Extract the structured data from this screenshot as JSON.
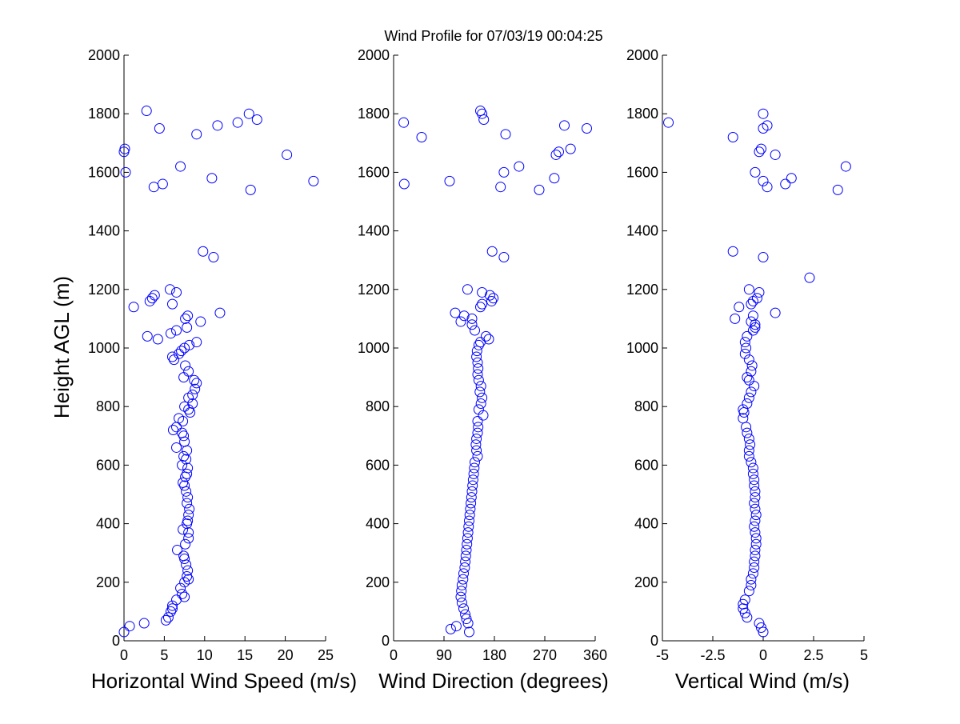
{
  "chart_data": {
    "title": "Wind Profile for  07/03/19 00:04:25",
    "ylabel": "Height AGL (m)",
    "ylim": [
      0,
      2000
    ],
    "yticks": [
      "0",
      "200",
      "400",
      "600",
      "800",
      "1000",
      "1200",
      "1400",
      "1600",
      "1800",
      "2000"
    ],
    "point_color": "#0000ff",
    "panels": [
      {
        "type": "scatter",
        "xlabel": "Horizontal Wind Speed (m/s)",
        "xlim": [
          0,
          25
        ],
        "xticks": [
          {
            "v": 0,
            "label": "0"
          },
          {
            "v": 5,
            "label": "5"
          },
          {
            "v": 10,
            "label": "10"
          },
          {
            "v": 15,
            "label": "15"
          },
          {
            "v": 20,
            "label": "20"
          },
          {
            "v": 25,
            "label": "25"
          }
        ],
        "points": [
          [
            0.0,
            30
          ],
          [
            0.7,
            50
          ],
          [
            2.5,
            60
          ],
          [
            5.2,
            70
          ],
          [
            5.5,
            80
          ],
          [
            5.8,
            100
          ],
          [
            6.0,
            110
          ],
          [
            6.0,
            120
          ],
          [
            6.5,
            140
          ],
          [
            7.5,
            150
          ],
          [
            7.2,
            160
          ],
          [
            7.0,
            180
          ],
          [
            7.5,
            200
          ],
          [
            8.0,
            210
          ],
          [
            7.8,
            220
          ],
          [
            7.9,
            240
          ],
          [
            7.7,
            260
          ],
          [
            7.5,
            280
          ],
          [
            7.4,
            290
          ],
          [
            6.6,
            310
          ],
          [
            7.6,
            330
          ],
          [
            8.0,
            350
          ],
          [
            8.0,
            370
          ],
          [
            7.3,
            380
          ],
          [
            7.8,
            400
          ],
          [
            7.9,
            410
          ],
          [
            8.0,
            430
          ],
          [
            8.1,
            450
          ],
          [
            7.8,
            470
          ],
          [
            7.9,
            490
          ],
          [
            7.7,
            510
          ],
          [
            7.5,
            530
          ],
          [
            7.3,
            540
          ],
          [
            7.6,
            560
          ],
          [
            7.8,
            570
          ],
          [
            7.9,
            590
          ],
          [
            7.2,
            600
          ],
          [
            7.7,
            620
          ],
          [
            7.4,
            630
          ],
          [
            7.8,
            650
          ],
          [
            6.5,
            660
          ],
          [
            7.5,
            680
          ],
          [
            7.4,
            700
          ],
          [
            7.2,
            710
          ],
          [
            6.1,
            720
          ],
          [
            6.5,
            730
          ],
          [
            7.3,
            750
          ],
          [
            6.8,
            760
          ],
          [
            8.2,
            780
          ],
          [
            8.0,
            790
          ],
          [
            7.5,
            800
          ],
          [
            8.5,
            810
          ],
          [
            8.0,
            830
          ],
          [
            8.5,
            840
          ],
          [
            8.8,
            860
          ],
          [
            9.0,
            880
          ],
          [
            8.7,
            890
          ],
          [
            7.4,
            900
          ],
          [
            8.0,
            920
          ],
          [
            7.6,
            940
          ],
          [
            6.2,
            960
          ],
          [
            6.0,
            970
          ],
          [
            6.8,
            980
          ],
          [
            7.1,
            990
          ],
          [
            7.5,
            1000
          ],
          [
            8.1,
            1010
          ],
          [
            9.0,
            1020
          ],
          [
            2.9,
            1040
          ],
          [
            4.2,
            1030
          ],
          [
            5.8,
            1050
          ],
          [
            6.5,
            1060
          ],
          [
            7.8,
            1070
          ],
          [
            9.5,
            1090
          ],
          [
            7.6,
            1100
          ],
          [
            7.9,
            1110
          ],
          [
            11.9,
            1120
          ],
          [
            1.2,
            1140
          ],
          [
            6.0,
            1150
          ],
          [
            3.2,
            1160
          ],
          [
            3.5,
            1170
          ],
          [
            3.8,
            1180
          ],
          [
            6.5,
            1190
          ],
          [
            5.7,
            1200
          ],
          [
            11.1,
            1310
          ],
          [
            9.8,
            1330
          ],
          [
            3.7,
            1550
          ],
          [
            4.8,
            1560
          ],
          [
            15.7,
            1540
          ],
          [
            23.5,
            1570
          ],
          [
            10.9,
            1580
          ],
          [
            0.2,
            1600
          ],
          [
            7.0,
            1620
          ],
          [
            20.2,
            1660
          ],
          [
            0.0,
            1670
          ],
          [
            0.1,
            1680
          ],
          [
            4.4,
            1750
          ],
          [
            9.0,
            1730
          ],
          [
            11.6,
            1760
          ],
          [
            14.1,
            1770
          ],
          [
            16.5,
            1780
          ],
          [
            15.5,
            1800
          ],
          [
            2.8,
            1810
          ]
        ]
      },
      {
        "type": "scatter",
        "xlabel": "Wind Direction (degrees)",
        "xlim": [
          0,
          360
        ],
        "xticks": [
          {
            "v": 0,
            "label": "0"
          },
          {
            "v": 90,
            "label": "90"
          },
          {
            "v": 180,
            "label": "180"
          },
          {
            "v": 270,
            "label": "270"
          },
          {
            "v": 360,
            "label": "360"
          }
        ],
        "points": [
          [
            135,
            30
          ],
          [
            102,
            40
          ],
          [
            112,
            50
          ],
          [
            133,
            60
          ],
          [
            130,
            75
          ],
          [
            128,
            90
          ],
          [
            125,
            110
          ],
          [
            122,
            130
          ],
          [
            120,
            150
          ],
          [
            121,
            170
          ],
          [
            122,
            190
          ],
          [
            124,
            210
          ],
          [
            125,
            230
          ],
          [
            127,
            250
          ],
          [
            128,
            270
          ],
          [
            129,
            290
          ],
          [
            130,
            310
          ],
          [
            131,
            330
          ],
          [
            132,
            350
          ],
          [
            133,
            370
          ],
          [
            134,
            390
          ],
          [
            135,
            410
          ],
          [
            136,
            430
          ],
          [
            137,
            450
          ],
          [
            138,
            470
          ],
          [
            139,
            490
          ],
          [
            140,
            510
          ],
          [
            141,
            530
          ],
          [
            142,
            550
          ],
          [
            143,
            570
          ],
          [
            144,
            590
          ],
          [
            145,
            610
          ],
          [
            150,
            630
          ],
          [
            148,
            650
          ],
          [
            147,
            670
          ],
          [
            148,
            690
          ],
          [
            150,
            710
          ],
          [
            151,
            730
          ],
          [
            150,
            750
          ],
          [
            160,
            770
          ],
          [
            152,
            790
          ],
          [
            156,
            810
          ],
          [
            158,
            830
          ],
          [
            154,
            850
          ],
          [
            156,
            870
          ],
          [
            152,
            890
          ],
          [
            150,
            910
          ],
          [
            151,
            930
          ],
          [
            150,
            950
          ],
          [
            148,
            970
          ],
          [
            149,
            990
          ],
          [
            152,
            1010
          ],
          [
            155,
            1020
          ],
          [
            170,
            1030
          ],
          [
            165,
            1040
          ],
          [
            145,
            1060
          ],
          [
            140,
            1080
          ],
          [
            120,
            1090
          ],
          [
            140,
            1100
          ],
          [
            126,
            1110
          ],
          [
            110,
            1120
          ],
          [
            155,
            1140
          ],
          [
            158,
            1150
          ],
          [
            175,
            1160
          ],
          [
            178,
            1170
          ],
          [
            172,
            1180
          ],
          [
            158,
            1190
          ],
          [
            132,
            1200
          ],
          [
            197,
            1310
          ],
          [
            176,
            1330
          ],
          [
            19,
            1560
          ],
          [
            100,
            1570
          ],
          [
            287,
            1580
          ],
          [
            197,
            1600
          ],
          [
            224,
            1620
          ],
          [
            290,
            1660
          ],
          [
            295,
            1670
          ],
          [
            316,
            1680
          ],
          [
            260,
            1540
          ],
          [
            191,
            1550
          ],
          [
            50,
            1720
          ],
          [
            200,
            1730
          ],
          [
            345,
            1750
          ],
          [
            305,
            1760
          ],
          [
            18,
            1770
          ],
          [
            161,
            1780
          ],
          [
            158,
            1800
          ],
          [
            155,
            1810
          ]
        ]
      },
      {
        "type": "scatter",
        "xlabel": "Vertical Wind (m/s)",
        "xlim": [
          -5,
          5
        ],
        "xticks": [
          {
            "v": -5,
            "label": "-5"
          },
          {
            "v": -2.5,
            "label": "-2.5"
          },
          {
            "v": 0,
            "label": "0"
          },
          {
            "v": 2.5,
            "label": "2.5"
          },
          {
            "v": 5,
            "label": "5"
          }
        ],
        "points": [
          [
            0.0,
            30
          ],
          [
            -0.1,
            45
          ],
          [
            -0.2,
            60
          ],
          [
            -0.8,
            80
          ],
          [
            -0.9,
            95
          ],
          [
            -1.0,
            110
          ],
          [
            -1.0,
            125
          ],
          [
            -0.9,
            140
          ],
          [
            -0.7,
            170
          ],
          [
            -0.6,
            190
          ],
          [
            -0.6,
            210
          ],
          [
            -0.5,
            230
          ],
          [
            -0.45,
            250
          ],
          [
            -0.45,
            270
          ],
          [
            -0.4,
            290
          ],
          [
            -0.4,
            310
          ],
          [
            -0.35,
            330
          ],
          [
            -0.35,
            350
          ],
          [
            -0.4,
            370
          ],
          [
            -0.45,
            390
          ],
          [
            -0.4,
            410
          ],
          [
            -0.35,
            430
          ],
          [
            -0.4,
            450
          ],
          [
            -0.45,
            470
          ],
          [
            -0.4,
            490
          ],
          [
            -0.4,
            510
          ],
          [
            -0.45,
            530
          ],
          [
            -0.45,
            550
          ],
          [
            -0.5,
            570
          ],
          [
            -0.5,
            590
          ],
          [
            -0.6,
            610
          ],
          [
            -0.7,
            630
          ],
          [
            -0.7,
            650
          ],
          [
            -0.65,
            670
          ],
          [
            -0.7,
            690
          ],
          [
            -0.8,
            710
          ],
          [
            -0.85,
            730
          ],
          [
            -1.0,
            760
          ],
          [
            -0.95,
            780
          ],
          [
            -1.0,
            790
          ],
          [
            -0.8,
            810
          ],
          [
            -0.7,
            830
          ],
          [
            -0.6,
            850
          ],
          [
            -0.45,
            870
          ],
          [
            -0.7,
            890
          ],
          [
            -0.8,
            900
          ],
          [
            -0.6,
            920
          ],
          [
            -0.55,
            940
          ],
          [
            -0.7,
            960
          ],
          [
            -0.9,
            980
          ],
          [
            -0.85,
            1000
          ],
          [
            -0.9,
            1020
          ],
          [
            -0.8,
            1040
          ],
          [
            -0.5,
            1060
          ],
          [
            -0.4,
            1070
          ],
          [
            -0.4,
            1080
          ],
          [
            -0.6,
            1090
          ],
          [
            -1.4,
            1100
          ],
          [
            -0.5,
            1110
          ],
          [
            0.6,
            1120
          ],
          [
            -1.2,
            1140
          ],
          [
            -0.6,
            1150
          ],
          [
            -0.5,
            1160
          ],
          [
            -0.3,
            1170
          ],
          [
            -0.2,
            1190
          ],
          [
            -0.7,
            1200
          ],
          [
            2.3,
            1240
          ],
          [
            0.0,
            1310
          ],
          [
            -1.5,
            1330
          ],
          [
            3.7,
            1540
          ],
          [
            0.2,
            1550
          ],
          [
            1.1,
            1560
          ],
          [
            0.0,
            1570
          ],
          [
            1.4,
            1580
          ],
          [
            -0.4,
            1600
          ],
          [
            4.1,
            1620
          ],
          [
            0.6,
            1660
          ],
          [
            -0.2,
            1670
          ],
          [
            -0.1,
            1680
          ],
          [
            -1.5,
            1720
          ],
          [
            0.0,
            1750
          ],
          [
            0.2,
            1760
          ],
          [
            -4.7,
            1770
          ],
          [
            0.0,
            1800
          ]
        ]
      }
    ]
  }
}
